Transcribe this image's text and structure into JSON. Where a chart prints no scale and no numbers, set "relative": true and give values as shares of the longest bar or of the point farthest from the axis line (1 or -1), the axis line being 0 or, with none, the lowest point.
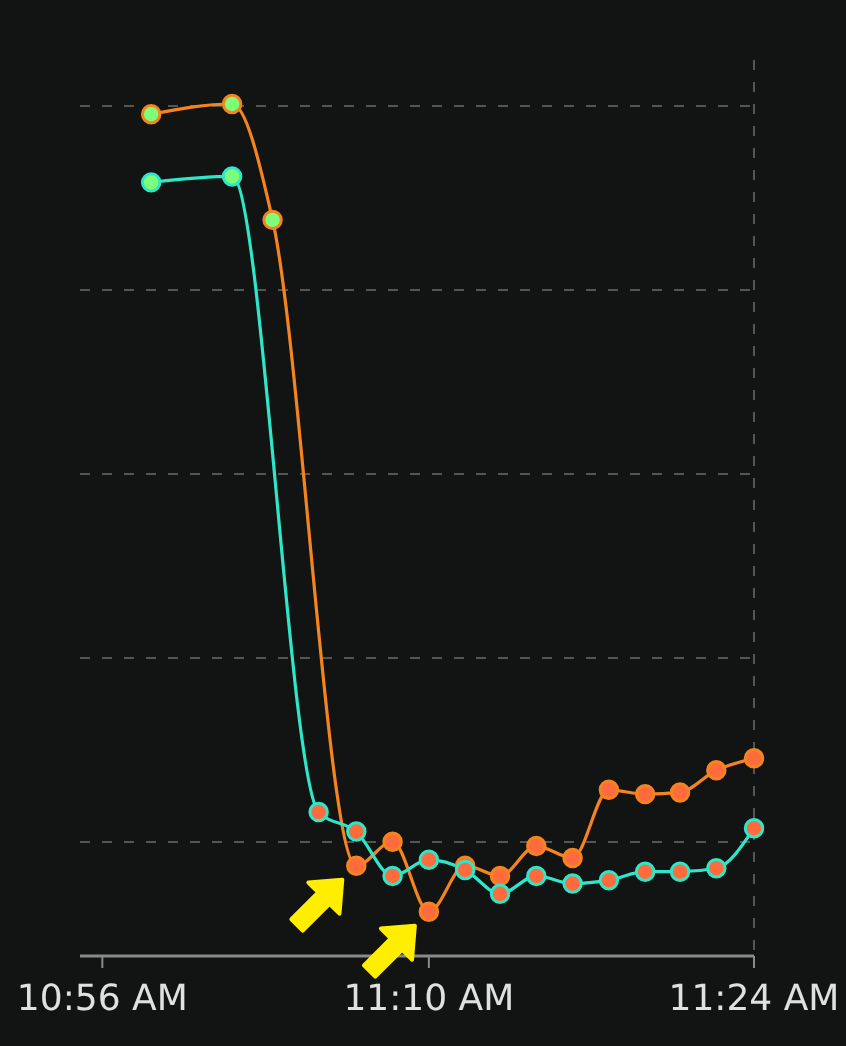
{
  "chart_data": {
    "type": "line",
    "relative": true,
    "x": [
      10.968,
      11.026,
      11.055,
      11.115,
      11.141,
      11.167,
      11.193,
      11.218,
      11.244,
      11.27,
      11.296,
      11.322,
      11.347,
      11.373,
      11.4
    ],
    "xlim": [
      10.917,
      11.4
    ],
    "xticks": [
      {
        "value": 10.933,
        "label": "10:56 AM"
      },
      {
        "value": 11.167,
        "label": "11:10 AM"
      },
      {
        "value": 11.4,
        "label": "11:24 AM"
      }
    ],
    "grid": "y",
    "marker": "circle",
    "line_style": "solid",
    "series": [
      {
        "color": "#f5841f",
        "colors": [
          "#7dff7a",
          "#7dff7a",
          "#7dff7a",
          "#ff6b3d",
          "#ff6b3d",
          "#ff6b3d",
          "#ff6b3d",
          "#ff6b3d",
          "#ff6b3d",
          "#ff6b3d",
          "#ff6b3d",
          "#ff6b3d",
          "#ff6b3d",
          "#ff6b3d",
          "#ff6b3d"
        ],
        "values": [
          0.988,
          1,
          0.864,
          0.106,
          0.134,
          0.052,
          0.106,
          0.094,
          0.129,
          0.115,
          0.195,
          0.19,
          0.192,
          0.218,
          0.232
        ]
      },
      {
        "color": "#2ee6c8",
        "x": [
          10.968,
          11.026,
          11.088,
          11.115,
          11.141,
          11.167,
          11.193,
          11.218,
          11.244,
          11.27,
          11.296,
          11.322,
          11.347,
          11.373,
          11.4
        ],
        "colors": [
          "#7dff7a",
          "#7dff7a",
          "#ff6b3d",
          "#ff6b3d",
          "#ff6b3d",
          "#ff6b3d",
          "#ff6b3d",
          "#ff6b3d",
          "#ff6b3d",
          "#ff6b3d",
          "#ff6b3d",
          "#ff6b3d",
          "#ff6b3d",
          "#ff6b3d",
          "#ff6b3d"
        ],
        "values": [
          0.908,
          0.915,
          0.169,
          0.146,
          0.094,
          0.113,
          0.101,
          0.073,
          0.094,
          0.085,
          0.089,
          0.099,
          0.099,
          0.103,
          0.15
        ]
      }
    ]
  }
}
